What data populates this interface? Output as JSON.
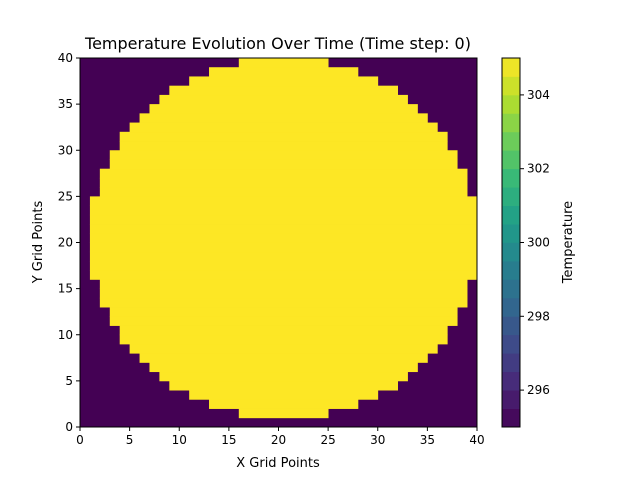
{
  "chart_data": {
    "type": "heatmap",
    "title": "Temperature Evolution Over Time (Time step: 0)",
    "xlabel": "X Grid Points",
    "ylabel": "Y Grid Points",
    "xlim": [
      0,
      40
    ],
    "ylim": [
      0,
      40
    ],
    "x_ticks": [
      "0",
      "5",
      "10",
      "15",
      "20",
      "25",
      "30",
      "35",
      "40"
    ],
    "y_ticks": [
      "0",
      "5",
      "10",
      "15",
      "20",
      "25",
      "30",
      "35",
      "40"
    ],
    "circle": {
      "center_x": 20.5,
      "center_y": 20.5,
      "radius": 19.6
    },
    "inside_value": 305,
    "outside_value": 295,
    "colorbar": {
      "label": "Temperature",
      "range": [
        295,
        305
      ],
      "ticks": [
        "296",
        "298",
        "300",
        "302",
        "304"
      ],
      "colormap": "viridis"
    },
    "grid": false
  }
}
